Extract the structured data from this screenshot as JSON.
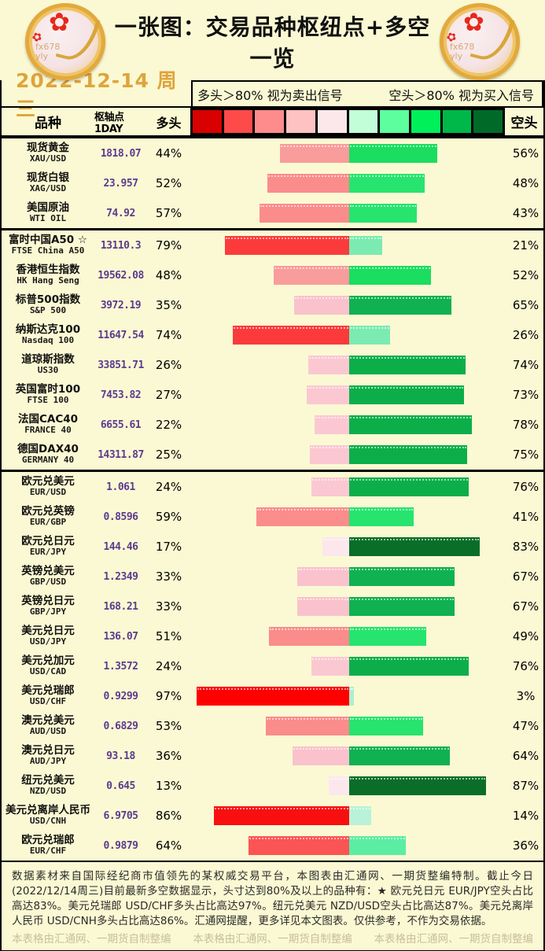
{
  "header": {
    "title": "一张图：交易品种枢纽点+多空一览",
    "date": "2022-12-14 周三",
    "legend_long": "多头＞80% 视为卖出信号",
    "legend_short": "空头＞80% 视为买入信号",
    "coin_watermark": "fx678\nyly"
  },
  "columns": {
    "instrument": "品种",
    "pivot": "枢轴点1DAY",
    "long": "多头",
    "short": "空头"
  },
  "color_scale": [
    "#D80000",
    "#FF4A4A",
    "#FF8C8C",
    "#FFC2C2",
    "#FCE8EA",
    "#C2FFD9",
    "#5CFF9E",
    "#00F05A",
    "#00B74A",
    "#006B28"
  ],
  "bar_colors": {
    "long": [
      "#FDEFF2",
      "#FCE8EC",
      "#FBC8D2",
      "#FAC2CC",
      "#F99C9C",
      "#FA8C8C",
      "#FB5454",
      "#FB3B3B",
      "#F81010",
      "#FE0000"
    ],
    "short": [
      "#ADEFD1",
      "#B9F2D8",
      "#7BEBB1",
      "#5BEDA2",
      "#27E46E",
      "#1BDD60",
      "#10B150",
      "#0CAE4A",
      "#0A6E28",
      "#07551F"
    ]
  },
  "rows": [
    {
      "name_cn": "现货黄金",
      "name_en": "XAU/USD",
      "pivot": "1818.07",
      "long": 44,
      "short": 56,
      "section_start": false
    },
    {
      "name_cn": "现货白银",
      "name_en": "XAG/USD",
      "pivot": "23.957",
      "long": 52,
      "short": 48,
      "section_start": false
    },
    {
      "name_cn": "美国原油",
      "name_en": "WTI OIL",
      "pivot": "74.92",
      "long": 57,
      "short": 43,
      "section_start": false
    },
    {
      "name_cn": "富时中国A50 ☆",
      "name_en": "FTSE China A50",
      "pivot": "13110.3",
      "long": 79,
      "short": 21,
      "section_start": true
    },
    {
      "name_cn": "香港恒生指数",
      "name_en": "HK Hang Seng",
      "pivot": "19562.08",
      "long": 48,
      "short": 52,
      "section_start": false
    },
    {
      "name_cn": "标普500指数",
      "name_en": "S&P 500",
      "pivot": "3972.19",
      "long": 35,
      "short": 65,
      "section_start": false
    },
    {
      "name_cn": "纳斯达克100",
      "name_en": "Nasdaq 100",
      "pivot": "11647.54",
      "long": 74,
      "short": 26,
      "section_start": false
    },
    {
      "name_cn": "道琼斯指数",
      "name_en": "US30",
      "pivot": "33851.71",
      "long": 26,
      "short": 74,
      "section_start": false
    },
    {
      "name_cn": "英国富时100",
      "name_en": "FTSE 100",
      "pivot": "7453.82",
      "long": 27,
      "short": 73,
      "section_start": false
    },
    {
      "name_cn": "法国CAC40",
      "name_en": "FRANCE 40",
      "pivot": "6655.61",
      "long": 22,
      "short": 78,
      "section_start": false
    },
    {
      "name_cn": "德国DAX40",
      "name_en": "GERMANY 40",
      "pivot": "14311.87",
      "long": 25,
      "short": 75,
      "section_start": false
    },
    {
      "name_cn": "欧元兑美元",
      "name_en": "EUR/USD",
      "pivot": "1.061",
      "long": 24,
      "short": 76,
      "section_start": true
    },
    {
      "name_cn": "欧元兑英镑",
      "name_en": "EUR/GBP",
      "pivot": "0.8596",
      "long": 59,
      "short": 41,
      "section_start": false
    },
    {
      "name_cn": "欧元兑日元",
      "name_en": "EUR/JPY",
      "pivot": "144.46",
      "long": 17,
      "short": 83,
      "section_start": false
    },
    {
      "name_cn": "英镑兑美元",
      "name_en": "GBP/USD",
      "pivot": "1.2349",
      "long": 33,
      "short": 67,
      "section_start": false
    },
    {
      "name_cn": "英镑兑日元",
      "name_en": "GBP/JPY",
      "pivot": "168.21",
      "long": 33,
      "short": 67,
      "section_start": false
    },
    {
      "name_cn": "美元兑日元",
      "name_en": "USD/JPY",
      "pivot": "136.07",
      "long": 51,
      "short": 49,
      "section_start": false
    },
    {
      "name_cn": "美元兑加元",
      "name_en": "USD/CAD",
      "pivot": "1.3572",
      "long": 24,
      "short": 76,
      "section_start": false
    },
    {
      "name_cn": "美元兑瑞郎",
      "name_en": "USD/CHF",
      "pivot": "0.9299",
      "long": 97,
      "short": 3,
      "section_start": false
    },
    {
      "name_cn": "澳元兑美元",
      "name_en": "AUD/USD",
      "pivot": "0.6829",
      "long": 53,
      "short": 47,
      "section_start": false
    },
    {
      "name_cn": "澳元兑日元",
      "name_en": "AUD/JPY",
      "pivot": "93.18",
      "long": 36,
      "short": 64,
      "section_start": false
    },
    {
      "name_cn": "纽元兑美元",
      "name_en": "NZD/USD",
      "pivot": "0.645",
      "long": 13,
      "short": 87,
      "section_start": false
    },
    {
      "name_cn": "美元兑离岸人民币",
      "name_en": "USD/CNH",
      "pivot": "6.9705",
      "long": 86,
      "short": 14,
      "section_start": false
    },
    {
      "name_cn": "欧元兑瑞郎",
      "name_en": "EUR/CHF",
      "pivot": "0.9879",
      "long": 64,
      "short": 36,
      "section_start": false
    }
  ],
  "footer": {
    "note": "数据素材来自国际经纪商市值领先的某权威交易平台，本图表由汇通网、一期货整编特制。截止今日(2022/12/14周三)目前最新多空数据显示，头寸达到80%及以上的品种有：★ 欧元兑日元 EUR/JPY空头占比高达83%。美元兑瑞郎 USD/CHF多头占比高达97%。纽元兑美元 NZD/USD空头占比高达87%。美元兑离岸人民币 USD/CNH多头占比高达86%。汇通网提醒，更多详见本文图表。仅供参考，不作为交易依据。",
    "watermarks": [
      "本表格由汇通网、一期货自制整编",
      "本表格由汇通网、一期货自制整编",
      "本表格由汇通网、一期货自制整编"
    ]
  },
  "chart_data": {
    "type": "bar",
    "title": "一张图：交易品种枢纽点+多空一览",
    "subtitle": "2022-12-14 周三",
    "orientation": "horizontal-diverging",
    "legend_position": "top",
    "notes": [
      "多头＞80% 视为卖出信号",
      "空头＞80% 视为买入信号"
    ],
    "axis_range": [
      0,
      100
    ],
    "categories": [
      "现货黄金 XAU/USD",
      "现货白银 XAG/USD",
      "美国原油 WTI OIL",
      "富时中国A50 FTSE China A50",
      "香港恒生指数 HK Hang Seng",
      "标普500指数 S&P 500",
      "纳斯达克100 Nasdaq 100",
      "道琼斯指数 US30",
      "英国富时100 FTSE 100",
      "法国CAC40 FRANCE 40",
      "德国DAX40 GERMANY 40",
      "欧元兑美元 EUR/USD",
      "欧元兑英镑 EUR/GBP",
      "欧元兑日元 EUR/JPY",
      "英镑兑美元 GBP/USD",
      "英镑兑日元 GBP/JPY",
      "美元兑日元 USD/JPY",
      "美元兑加元 USD/CAD",
      "美元兑瑞郎 USD/CHF",
      "澳元兑美元 AUD/USD",
      "澳元兑日元 AUD/JPY",
      "纽元兑美元 NZD/USD",
      "美元兑离岸人民币 USD/CNH",
      "欧元兑瑞郎 EUR/CHF"
    ],
    "series": [
      {
        "name": "多头 (%)",
        "values": [
          44,
          52,
          57,
          79,
          48,
          35,
          74,
          26,
          27,
          22,
          25,
          24,
          59,
          17,
          33,
          33,
          51,
          24,
          97,
          53,
          36,
          13,
          86,
          64
        ]
      },
      {
        "name": "空头 (%)",
        "values": [
          56,
          48,
          43,
          21,
          52,
          65,
          26,
          74,
          73,
          78,
          75,
          76,
          41,
          83,
          67,
          67,
          49,
          76,
          3,
          47,
          64,
          87,
          14,
          36
        ]
      },
      {
        "name": "枢轴点1DAY",
        "values": [
          1818.07,
          23.957,
          74.92,
          13110.3,
          19562.08,
          3972.19,
          11647.54,
          33851.71,
          7453.82,
          6655.61,
          14311.87,
          1.061,
          0.8596,
          144.46,
          1.2349,
          168.21,
          136.07,
          1.3572,
          0.9299,
          0.6829,
          93.18,
          0.645,
          6.9705,
          0.9879
        ]
      }
    ]
  }
}
